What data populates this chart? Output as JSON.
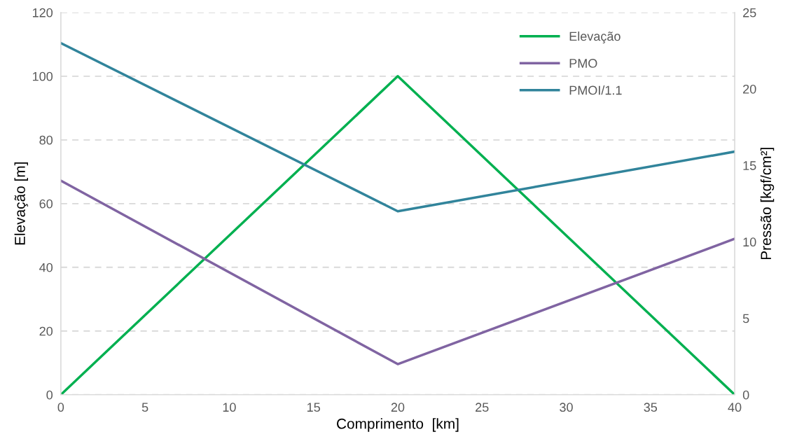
{
  "chart_data": {
    "type": "line",
    "xlabel": "Comprimento  [km]",
    "ylabel": "Elevação [m]",
    "y2label": "Pressão [kgf/cm²]",
    "xlim": [
      0,
      40
    ],
    "xticks": [
      0,
      5,
      10,
      15,
      20,
      25,
      30,
      35,
      40
    ],
    "ylim": [
      0,
      120
    ],
    "yticks": [
      0,
      20,
      40,
      60,
      80,
      100,
      120
    ],
    "y2lim": [
      0,
      25
    ],
    "y2ticks": [
      0,
      5,
      10,
      15,
      20,
      25
    ],
    "grid": "y",
    "legend": "top right",
    "marker": "none",
    "line_style": "solid",
    "series": [
      {
        "name": "Elevação",
        "color": "#00b050",
        "x": [
          0,
          20,
          40
        ],
        "values": [
          0,
          100,
          0
        ]
      },
      {
        "name": "PMO",
        "color": "#8064a2",
        "axis": "y2",
        "x": [
          0,
          20,
          40
        ],
        "values": [
          14.0,
          2.0,
          10.2
        ]
      },
      {
        "name": "PMOI/1.1",
        "color": "#31849b",
        "axis": "y2",
        "x": [
          0,
          20,
          40
        ],
        "values": [
          23.0,
          12.0,
          15.9
        ]
      }
    ]
  }
}
